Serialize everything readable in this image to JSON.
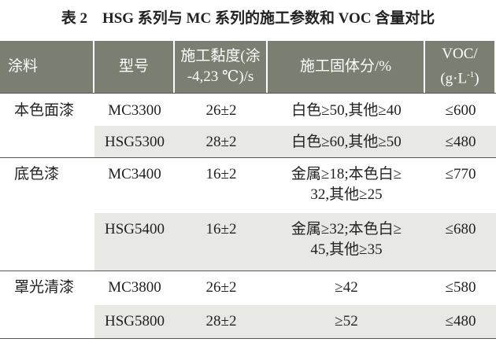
{
  "title": "表 2　HSG 系列与 MC 系列的施工参数和 VOC 含量对比",
  "table": {
    "header": [
      {
        "lines": [
          "涂料"
        ]
      },
      {
        "lines": [
          "型号"
        ]
      },
      {
        "lines": [
          "施工黏度(涂",
          "-4,23 ℃)/s"
        ]
      },
      {
        "lines": [
          "施工固体分/%"
        ]
      },
      {
        "lines": [
          "VOC/"
        ],
        "unit_pre": "(g·L",
        "unit_sup": "-1",
        "unit_post": ")"
      }
    ],
    "groups": [
      {
        "coating": "本色面漆",
        "rows": [
          {
            "model": "MC3300",
            "viscosity": "26±2",
            "solids": [
              "白色≥50,其他≥40"
            ],
            "voc": "≤600"
          },
          {
            "model": "HSG5300",
            "viscosity": "28±2",
            "solids": [
              "白色≥60,其他≥50"
            ],
            "voc": "≤480"
          }
        ]
      },
      {
        "coating": "底色漆",
        "rows": [
          {
            "model": "MC3400",
            "viscosity": "16±2",
            "solids": [
              "金属≥18;本色白≥",
              "32,其他≥25"
            ],
            "voc": "≤770"
          },
          {
            "model": "HSG5400",
            "viscosity": "16±2",
            "solids": [
              "金属≥32;本色白≥",
              "45,其他≥35"
            ],
            "voc": "≤680"
          }
        ]
      },
      {
        "coating": "罩光清漆",
        "rows": [
          {
            "model": "MC3800",
            "viscosity": "26±2",
            "solids": [
              "≥42"
            ],
            "voc": "≤580"
          },
          {
            "model": "HSG5800",
            "viscosity": "28±2",
            "solids": [
              "≥52"
            ],
            "voc": "≤480"
          }
        ]
      }
    ]
  }
}
